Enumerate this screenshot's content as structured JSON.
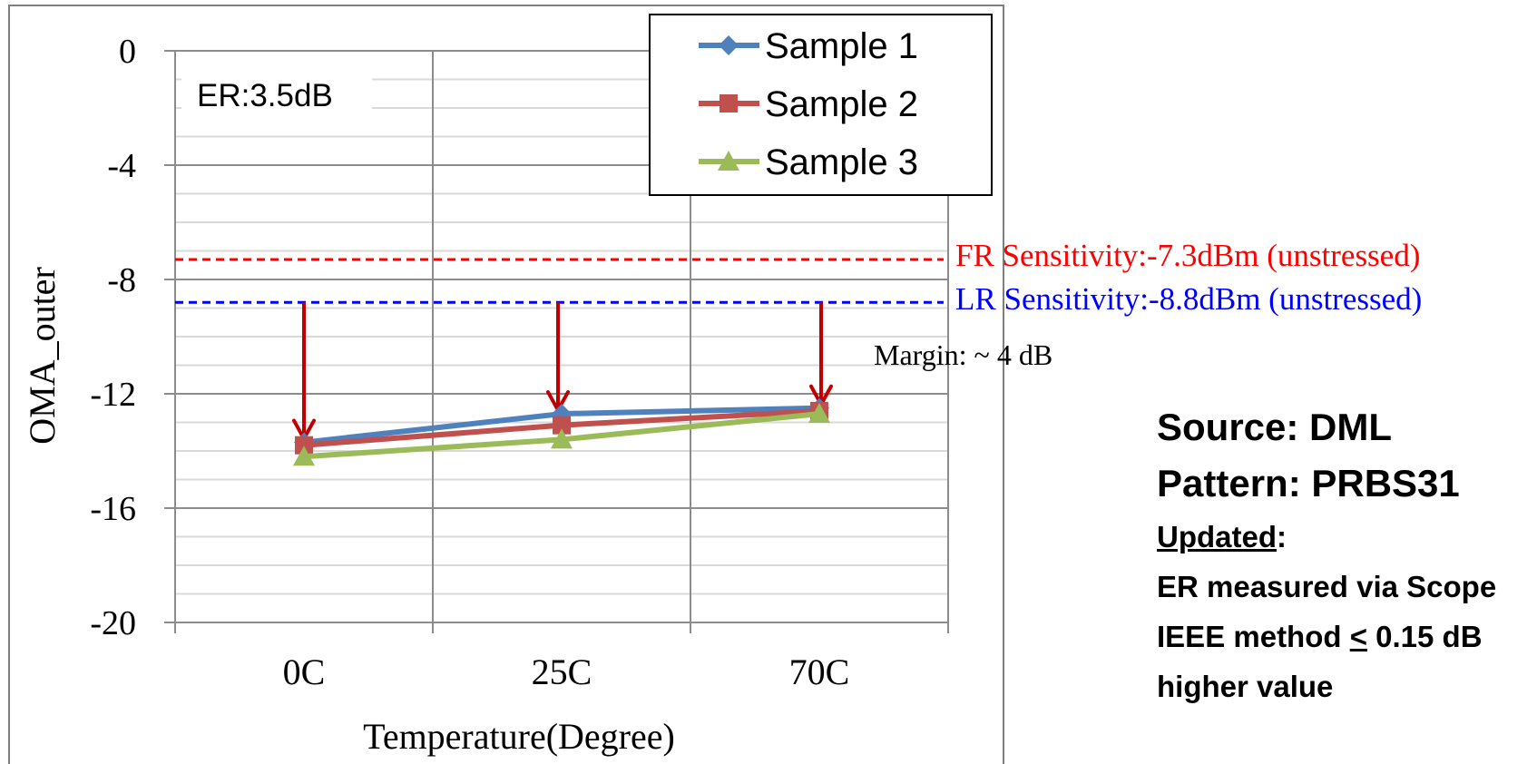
{
  "chart_data": {
    "type": "line",
    "categories": [
      "0C",
      "25C",
      "70C"
    ],
    "series": [
      {
        "name": "Sample 1",
        "values": [
          -13.7,
          -12.7,
          -12.5
        ],
        "color": "#4f81bd",
        "marker": "diamond"
      },
      {
        "name": "Sample 2",
        "values": [
          -13.8,
          -13.1,
          -12.6
        ],
        "color": "#c0504d",
        "marker": "square"
      },
      {
        "name": "Sample 3",
        "values": [
          -14.2,
          -13.6,
          -12.7
        ],
        "color": "#9bbb59",
        "marker": "triangle"
      }
    ],
    "xlabel": "Temperature(Degree)",
    "ylabel": "OMA_outer",
    "ylim": [
      -20,
      0
    ],
    "yticks": [
      "0",
      "-4",
      "-8",
      "-12",
      "-16",
      "-20"
    ],
    "ytick_values": [
      0,
      -4,
      -8,
      -12,
      -16,
      -20
    ],
    "grid": true,
    "legend_position": "top-right",
    "reference_lines": [
      {
        "label": "FR Sensitivity:-7.3dBm (unstressed)",
        "value": -7.3,
        "color": "#ff0000"
      },
      {
        "label": "LR Sensitivity:-8.8dBm (unstressed)",
        "value": -8.8,
        "color": "#0000ff"
      }
    ],
    "annotations": {
      "er": "ER:3.5dB",
      "margin": "Margin: ~ 4 dB",
      "arrow_color": "#c00000"
    }
  },
  "notes": {
    "source": "Source: DML",
    "pattern": "Pattern: PRBS31",
    "updated_label": "Updated",
    "updated_colon": ":",
    "line1": "ER measured via Scope",
    "line2_prefix": "IEEE method ",
    "line2_symbol": "<",
    "line2_suffix": " 0.15 dB",
    "line3": "higher value"
  }
}
